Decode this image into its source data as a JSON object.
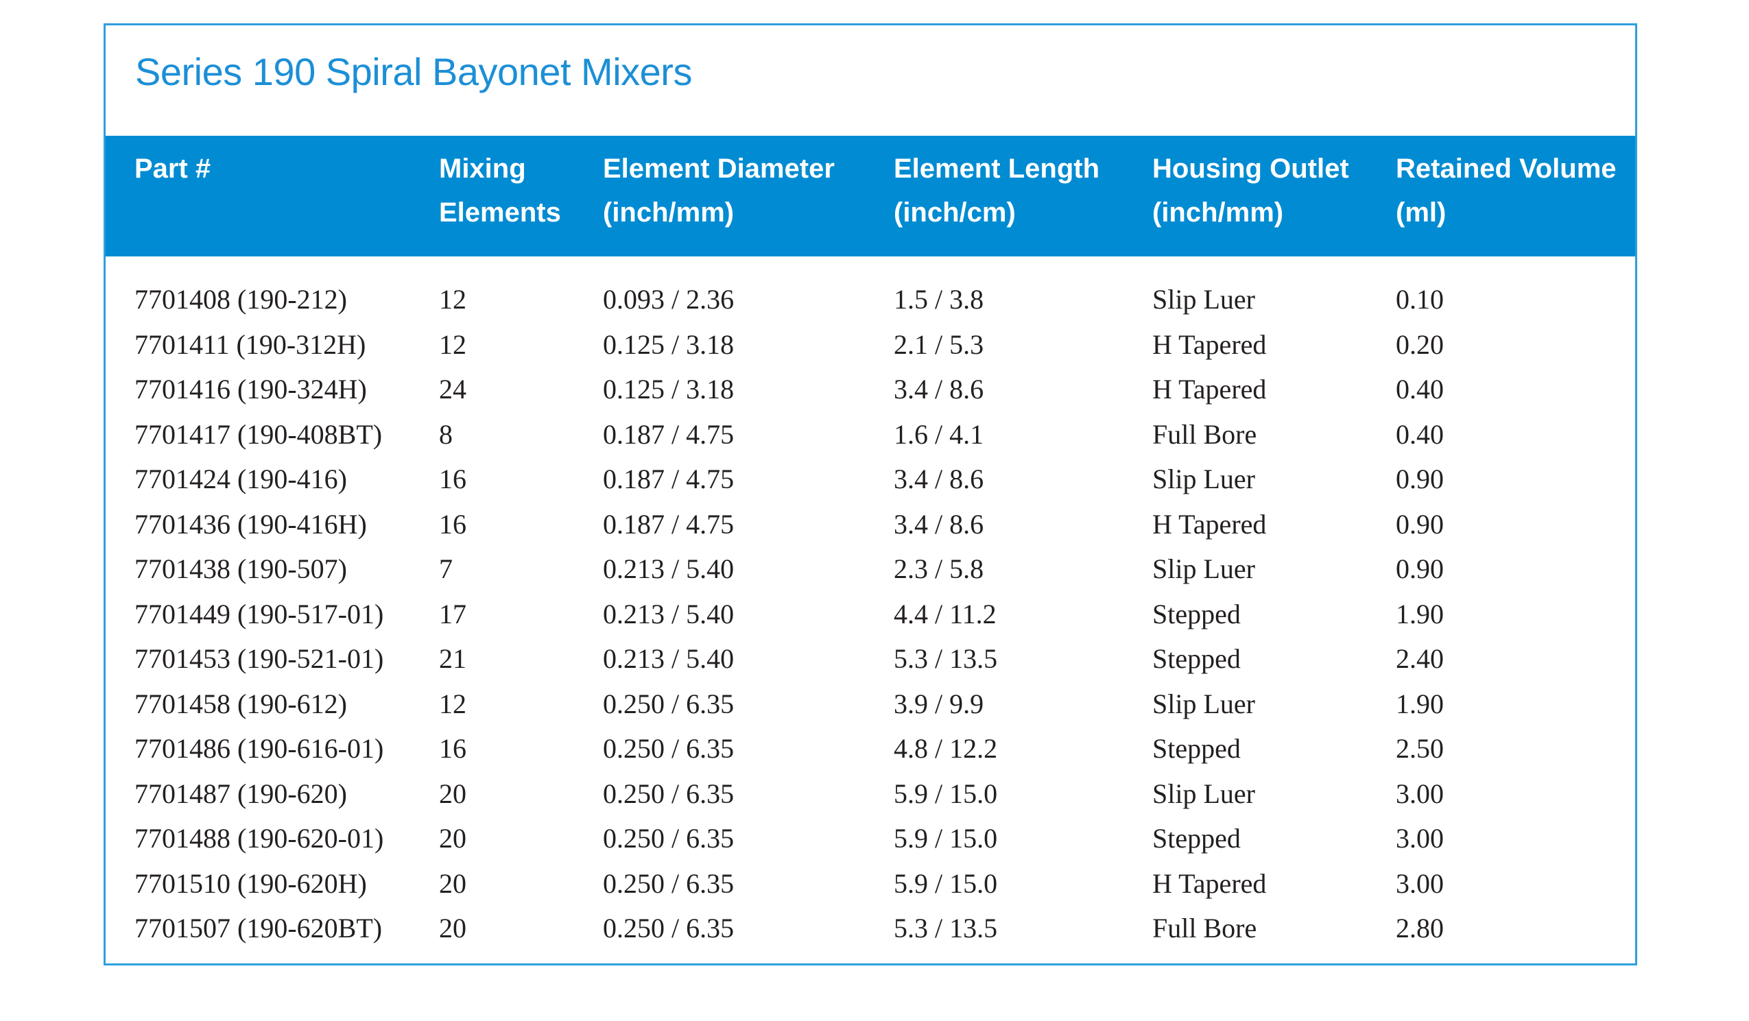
{
  "title": "Series 190 Spiral Bayonet Mixers",
  "colors": {
    "accent": "#008bd2",
    "title": "#1c8fd6",
    "border": "#2f9fdc",
    "text": "#231f20"
  },
  "headers": [
    [
      "Part #",
      ""
    ],
    [
      "Mixing",
      "Elements"
    ],
    [
      "Element Diameter",
      "(inch/mm)"
    ],
    [
      "Element Length",
      "(inch/cm)"
    ],
    [
      "Housing Outlet",
      "(inch/mm)"
    ],
    [
      "Retained Volume",
      "(ml)"
    ]
  ],
  "rows": [
    [
      "7701408 (190-212)",
      "12",
      "0.093 / 2.36",
      "1.5 / 3.8",
      "Slip Luer",
      "0.10"
    ],
    [
      "7701411 (190-312H)",
      "12",
      "0.125 / 3.18",
      "2.1 / 5.3",
      "H Tapered",
      "0.20"
    ],
    [
      "7701416 (190-324H)",
      "24",
      "0.125 / 3.18",
      "3.4 / 8.6",
      "H Tapered",
      "0.40"
    ],
    [
      "7701417 (190-408BT)",
      "8",
      "0.187 / 4.75",
      "1.6 / 4.1",
      "Full Bore",
      "0.40"
    ],
    [
      "7701424 (190-416)",
      "16",
      "0.187 / 4.75",
      "3.4 / 8.6",
      "Slip Luer",
      "0.90"
    ],
    [
      "7701436 (190-416H)",
      "16",
      "0.187 / 4.75",
      "3.4 / 8.6",
      "H Tapered",
      "0.90"
    ],
    [
      "7701438 (190-507)",
      "7",
      "0.213 / 5.40",
      "2.3 / 5.8",
      "Slip Luer",
      "0.90"
    ],
    [
      "7701449 (190-517-01)",
      "17",
      "0.213 / 5.40",
      "4.4 / 11.2",
      "Stepped",
      "1.90"
    ],
    [
      "7701453 (190-521-01)",
      "21",
      "0.213 / 5.40",
      "5.3 / 13.5",
      "Stepped",
      "2.40"
    ],
    [
      "7701458 (190-612)",
      "12",
      "0.250 / 6.35",
      "3.9 / 9.9",
      "Slip Luer",
      "1.90"
    ],
    [
      "7701486 (190-616-01)",
      "16",
      "0.250 / 6.35",
      "4.8 / 12.2",
      "Stepped",
      "2.50"
    ],
    [
      "7701487 (190-620)",
      "20",
      "0.250 / 6.35",
      "5.9 / 15.0",
      "Slip Luer",
      "3.00"
    ],
    [
      "7701488 (190-620-01)",
      "20",
      "0.250 / 6.35",
      "5.9 / 15.0",
      "Stepped",
      "3.00"
    ],
    [
      "7701510 (190-620H)",
      "20",
      "0.250 / 6.35",
      "5.9 / 15.0",
      "H Tapered",
      "3.00"
    ],
    [
      "7701507 (190-620BT)",
      "20",
      "0.250 / 6.35",
      "5.3 / 13.5",
      "Full Bore",
      "2.80"
    ]
  ]
}
